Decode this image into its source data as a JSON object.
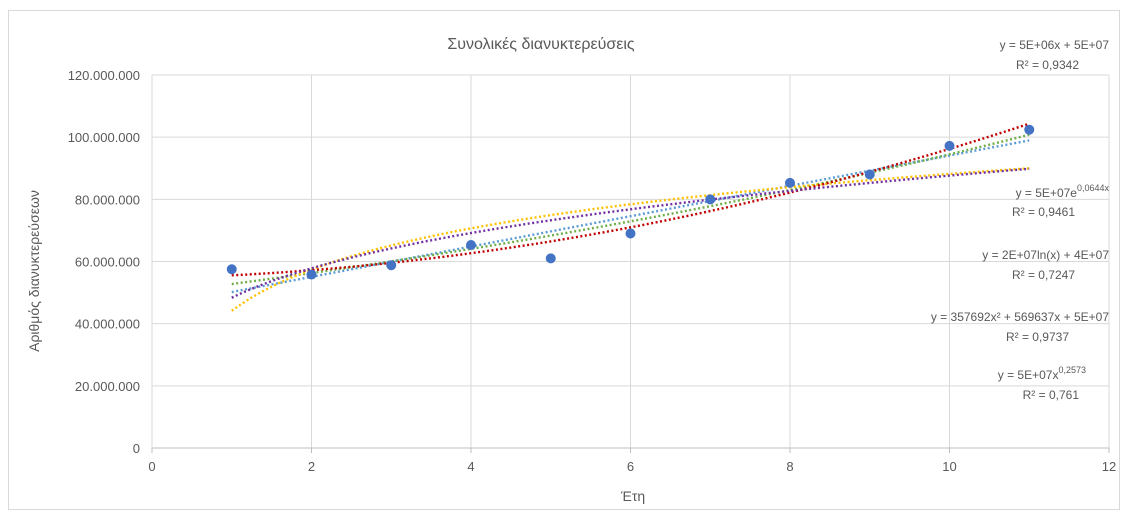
{
  "chart_data": {
    "type": "scatter",
    "title": "Συνολικές διανυκτερεύσεις",
    "xlabel": "Έτη",
    "ylabel": "Αριθμός διανυκτερεύσεων",
    "xlim": [
      0,
      12
    ],
    "ylim": [
      0,
      120000000
    ],
    "xticks": [
      0,
      2,
      4,
      6,
      8,
      10,
      12
    ],
    "yticks": [
      0,
      20000000,
      40000000,
      60000000,
      80000000,
      100000000,
      120000000
    ],
    "xtick_labels": [
      "0",
      "2",
      "4",
      "6",
      "8",
      "10",
      "12"
    ],
    "ytick_labels": [
      "0",
      "20.000.000",
      "40.000.000",
      "60.000.000",
      "80.000.000",
      "100.000.000",
      "120.000.000"
    ],
    "grid": true,
    "series": [
      {
        "color": "#4472c4",
        "x": [
          1,
          2,
          3,
          4,
          5,
          6,
          7,
          8,
          9,
          10,
          11
        ],
        "y": [
          57500000,
          55800000,
          58800000,
          65300000,
          61000000,
          69000000,
          80000000,
          85300000,
          88000000,
          97200000,
          102400000
        ]
      }
    ],
    "trendlines": [
      {
        "kind": "linear",
        "color": "#5b9bd5",
        "equation": "y = 5E+06x + 5E+07",
        "r2": "R² = 0,9342"
      },
      {
        "kind": "exponential",
        "color": "#70ad47",
        "equation_base": "y = 5E+07e",
        "equation_exp": "0,0644x",
        "r2": "R² = 0,9461"
      },
      {
        "kind": "logarithmic",
        "color": "#ffc000",
        "equation": "y = 2E+07ln(x) + 4E+07",
        "r2": "R² = 0,7247"
      },
      {
        "kind": "polynomial",
        "color": "#c00000",
        "equation": "y = 357692x² + 569637x + 5E+07",
        "r2": "R² = 0,9737"
      },
      {
        "kind": "power",
        "color": "#7030a0",
        "equation_base": "y = 5E+07x",
        "equation_exp": "0,2573",
        "r2": "R² = 0,761"
      }
    ]
  }
}
